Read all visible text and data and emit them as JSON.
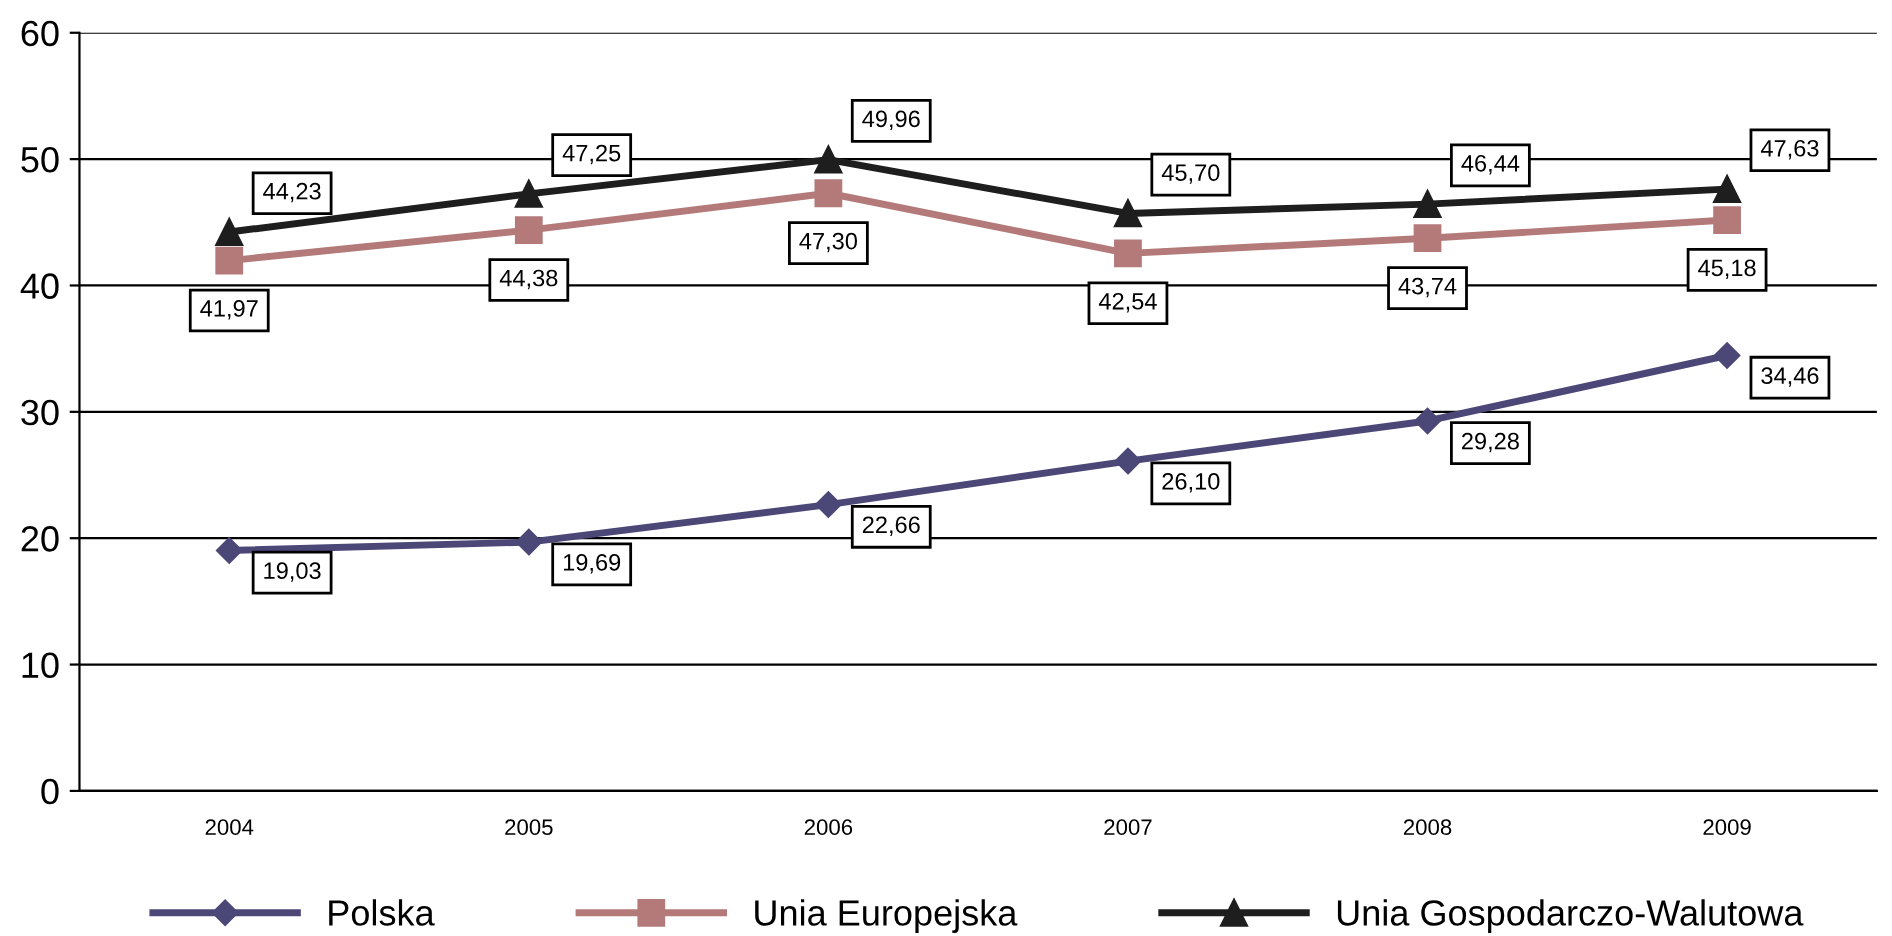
{
  "chart_data": {
    "type": "line",
    "categories": [
      "2004",
      "2005",
      "2006",
      "2007",
      "2008",
      "2009"
    ],
    "series": [
      {
        "name": "Polska",
        "color": "#4b4878",
        "marker": "diamond",
        "values": [
          19.03,
          19.69,
          22.66,
          26.1,
          29.28,
          34.46
        ],
        "value_labels": [
          "19,03",
          "19,69",
          "22,66",
          "26,10",
          "29,28",
          "34,46"
        ]
      },
      {
        "name": "Unia Europejska",
        "color": "#b47a7a",
        "marker": "square",
        "values": [
          41.97,
          44.38,
          47.3,
          42.54,
          43.74,
          45.18
        ],
        "value_labels": [
          "41,97",
          "44,38",
          "47,30",
          "42,54",
          "43,74",
          "45,18"
        ]
      },
      {
        "name": "Unia Gospodarczo-Walutowa",
        "color": "#1e1e1e",
        "marker": "triangle",
        "values": [
          44.23,
          47.25,
          49.96,
          45.7,
          46.44,
          47.63
        ],
        "value_labels": [
          "44,23",
          "47,25",
          "49,96",
          "45,70",
          "46,44",
          "47,63"
        ]
      }
    ],
    "ylim": [
      0,
      60
    ],
    "yticks": [
      0,
      10,
      20,
      30,
      40,
      50,
      60
    ],
    "grid": "y",
    "legend": "bottom",
    "line_style": "solid"
  }
}
